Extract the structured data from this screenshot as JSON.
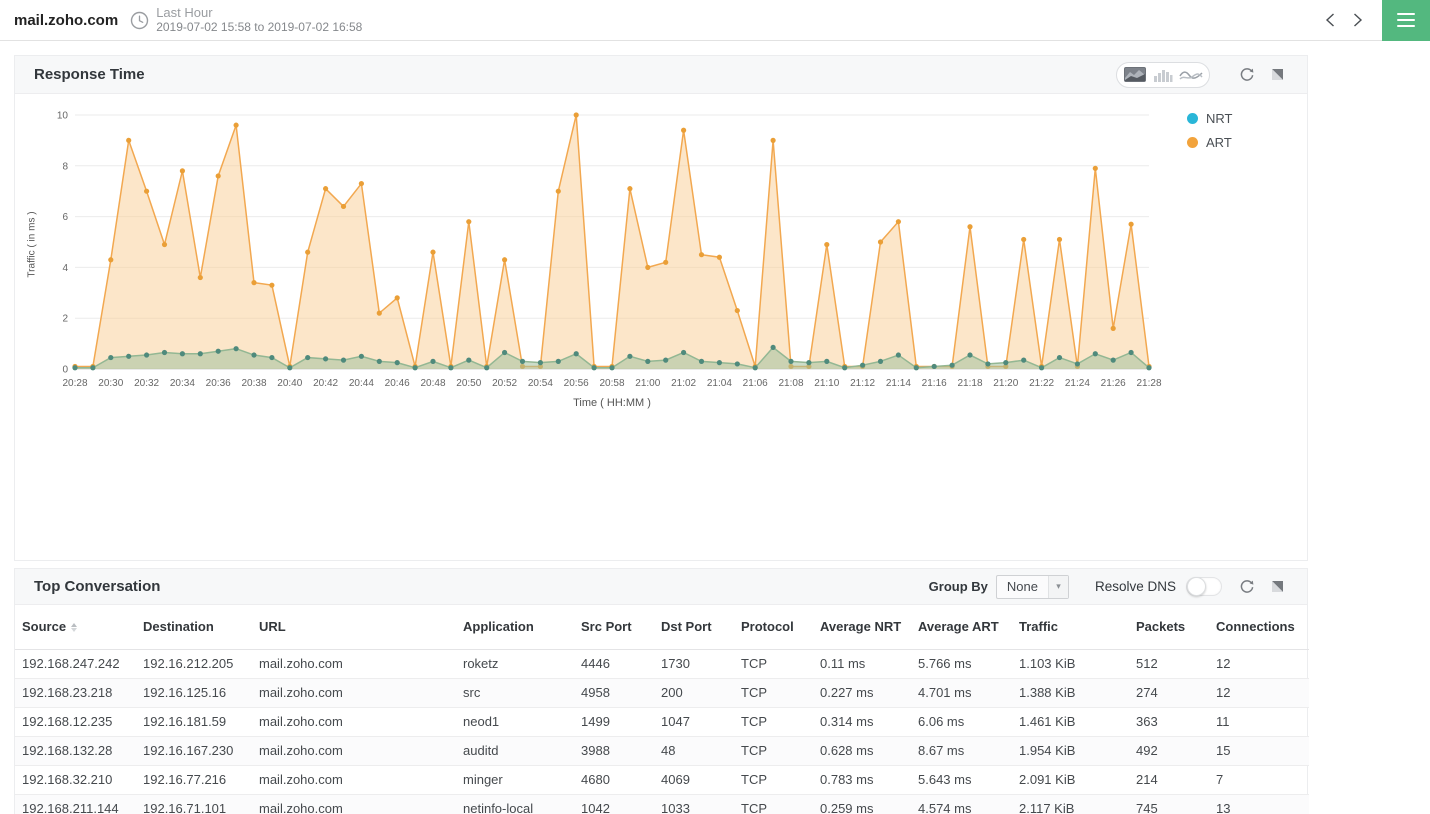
{
  "header": {
    "title": "mail.zoho.com",
    "time_range_label": "Last Hour",
    "time_range_value": "2019-07-02 15:58 to 2019-07-02 16:58"
  },
  "colors": {
    "menu_button": "#53b87f",
    "nrt_legend": "#29b6d8",
    "art_legend": "#f2a33c"
  },
  "icons": {
    "clock": "clock-icon",
    "chevron_left": "chevron-left-icon",
    "chevron_right": "chevron-right-icon",
    "menu": "hamburger-icon",
    "area_chart_type": "area-chart-icon",
    "bar_chart_type": "bar-chart-icon",
    "line_chart_type": "line-chart-icon",
    "refresh": "refresh-icon",
    "expand": "expand-icon",
    "dropdown_caret": "caret-down-icon",
    "sort": "sort-icon"
  },
  "response_time_panel": {
    "title": "Response Time"
  },
  "chart_data": {
    "type": "area",
    "title": "Response Time",
    "xlabel": "Time ( HH:MM )",
    "ylabel": "Traffic ( in ms )",
    "ylim": [
      0,
      10
    ],
    "y_ticks": [
      0,
      2,
      4,
      6,
      8,
      10
    ],
    "grid": "horizontal",
    "legend_position": "right",
    "x_tick_every": 2,
    "x": [
      "20:28",
      "20:29",
      "20:30",
      "20:31",
      "20:32",
      "20:33",
      "20:34",
      "20:35",
      "20:36",
      "20:37",
      "20:38",
      "20:39",
      "20:40",
      "20:41",
      "20:42",
      "20:43",
      "20:44",
      "20:45",
      "20:46",
      "20:47",
      "20:48",
      "20:49",
      "20:50",
      "20:51",
      "20:52",
      "20:53",
      "20:54",
      "20:55",
      "20:56",
      "20:57",
      "20:58",
      "20:59",
      "21:00",
      "21:01",
      "21:02",
      "21:03",
      "21:04",
      "21:05",
      "21:06",
      "21:07",
      "21:08",
      "21:09",
      "21:10",
      "21:11",
      "21:12",
      "21:13",
      "21:14",
      "21:15",
      "21:16",
      "21:17",
      "21:18",
      "21:19",
      "21:20",
      "21:21",
      "21:22",
      "21:23",
      "21:24",
      "21:25",
      "21:26",
      "21:27",
      "21:28"
    ],
    "series": [
      {
        "name": "NRT",
        "legend_color": "#29b6d8",
        "line_color": "#93b793",
        "marker_color": "#4f8a7c",
        "fill_color": "rgba(163,193,158,0.55)",
        "values": [
          0.05,
          0.05,
          0.45,
          0.5,
          0.55,
          0.65,
          0.6,
          0.6,
          0.7,
          0.8,
          0.55,
          0.45,
          0.05,
          0.45,
          0.4,
          0.35,
          0.5,
          0.3,
          0.25,
          0.05,
          0.3,
          0.05,
          0.35,
          0.05,
          0.65,
          0.3,
          0.25,
          0.3,
          0.6,
          0.05,
          0.05,
          0.5,
          0.3,
          0.35,
          0.65,
          0.3,
          0.25,
          0.2,
          0.05,
          0.85,
          0.3,
          0.25,
          0.3,
          0.05,
          0.15,
          0.3,
          0.55,
          0.05,
          0.1,
          0.15,
          0.55,
          0.2,
          0.25,
          0.35,
          0.05,
          0.45,
          0.2,
          0.6,
          0.35,
          0.65,
          0.05
        ]
      },
      {
        "name": "ART",
        "legend_color": "#f2a33c",
        "line_color": "#f2a850",
        "marker_color": "#ea9f37",
        "fill_color": "rgba(250,205,148,0.5)",
        "values": [
          0.1,
          0.1,
          4.3,
          9.0,
          7.0,
          4.9,
          7.8,
          3.6,
          7.6,
          9.6,
          3.4,
          3.3,
          0.1,
          4.6,
          7.1,
          6.4,
          7.3,
          2.2,
          2.8,
          0.1,
          4.6,
          0.1,
          5.8,
          0.1,
          4.3,
          0.1,
          0.1,
          7.0,
          10.0,
          0.1,
          0.1,
          7.1,
          4.0,
          4.2,
          9.4,
          4.5,
          4.4,
          2.3,
          0.1,
          9.0,
          0.1,
          0.1,
          4.9,
          0.1,
          0.1,
          5.0,
          5.8,
          0.1,
          0.1,
          0.1,
          5.6,
          0.1,
          0.1,
          5.1,
          0.1,
          5.1,
          0.1,
          7.9,
          1.6,
          5.7,
          0.1
        ]
      }
    ]
  },
  "top_conversation_panel": {
    "title": "Top Conversation",
    "group_by_label": "Group By",
    "group_by_value": "None",
    "resolve_dns_label": "Resolve DNS",
    "resolve_dns_on": false,
    "sorted_column": "Source",
    "columns": [
      "Source",
      "Destination",
      "URL",
      "Application",
      "Src Port",
      "Dst Port",
      "Protocol",
      "Average NRT",
      "Average ART",
      "Traffic",
      "Packets",
      "Connections"
    ],
    "rows": [
      [
        "192.168.247.242",
        "192.16.212.205",
        "mail.zoho.com",
        "roketz",
        "4446",
        "1730",
        "TCP",
        "0.11 ms",
        "5.766 ms",
        "1.103 KiB",
        "512",
        "12"
      ],
      [
        "192.168.23.218",
        "192.16.125.16",
        "mail.zoho.com",
        "src",
        "4958",
        "200",
        "TCP",
        "0.227 ms",
        "4.701 ms",
        "1.388 KiB",
        "274",
        "12"
      ],
      [
        "192.168.12.235",
        "192.16.181.59",
        "mail.zoho.com",
        "neod1",
        "1499",
        "1047",
        "TCP",
        "0.314 ms",
        "6.06 ms",
        "1.461 KiB",
        "363",
        "11"
      ],
      [
        "192.168.132.28",
        "192.16.167.230",
        "mail.zoho.com",
        "auditd",
        "3988",
        "48",
        "TCP",
        "0.628 ms",
        "8.67 ms",
        "1.954 KiB",
        "492",
        "15"
      ],
      [
        "192.168.32.210",
        "192.16.77.216",
        "mail.zoho.com",
        "minger",
        "4680",
        "4069",
        "TCP",
        "0.783 ms",
        "5.643 ms",
        "2.091 KiB",
        "214",
        "7"
      ],
      [
        "192.168.211.144",
        "192.16.71.101",
        "mail.zoho.com",
        "netinfo-local",
        "1042",
        "1033",
        "TCP",
        "0.259 ms",
        "4.574 ms",
        "2.117 KiB",
        "745",
        "13"
      ]
    ]
  }
}
